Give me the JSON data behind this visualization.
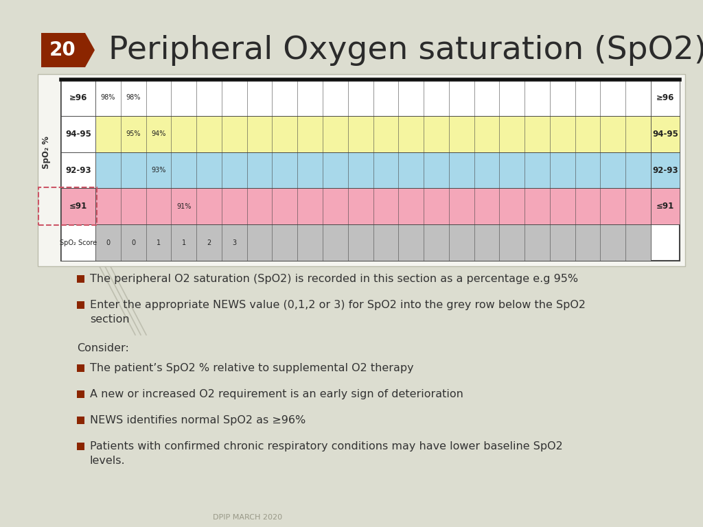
{
  "title": "Peripheral Oxygen saturation (SpO2)",
  "slide_number": "20",
  "bg_color": "#dcddd0",
  "title_color": "#2b2b2b",
  "badge_color": "#8b2500",
  "badge_text_color": "#ffffff",
  "table": {
    "rows": [
      {
        "label": "≥96",
        "color": "#ffffff",
        "values": [
          "98%",
          "98%",
          "",
          "",
          "",
          "",
          "",
          "",
          "",
          "",
          "",
          "",
          "",
          "",
          "",
          "",
          "",
          "",
          "",
          "",
          "",
          ""
        ],
        "right_label": "≥96"
      },
      {
        "label": "94-95",
        "color": "#f5f5a0",
        "values": [
          "",
          "95%",
          "94%",
          "",
          "",
          "",
          "",
          "",
          "",
          "",
          "",
          "",
          "",
          "",
          "",
          "",
          "",
          "",
          "",
          "",
          "",
          ""
        ],
        "right_label": "94-95"
      },
      {
        "label": "92-93",
        "color": "#a8d8ea",
        "values": [
          "",
          "",
          "93%",
          "",
          "",
          "",
          "",
          "",
          "",
          "",
          "",
          "",
          "",
          "",
          "",
          "",
          "",
          "",
          "",
          "",
          "",
          ""
        ],
        "right_label": "92-93"
      },
      {
        "label": "≤91",
        "color": "#f4a7b9",
        "values": [
          "",
          "",
          "",
          "91%",
          "",
          "",
          "",
          "",
          "",
          "",
          "",
          "",
          "",
          "",
          "",
          "",
          "",
          "",
          "",
          "",
          "",
          ""
        ],
        "right_label": "≤91"
      },
      {
        "label": "SpO₂ Score",
        "color": "#c0c0c0",
        "values": [
          "0",
          "0",
          "1",
          "1",
          "2",
          "3",
          "",
          "",
          "",
          "",
          "",
          "",
          "",
          "",
          "",
          "",
          "",
          "",
          "",
          "",
          "",
          ""
        ],
        "right_label": ""
      }
    ],
    "n_cols": 22,
    "ylabel": "SpO₂ %"
  },
  "bullet_color": "#8b2500",
  "bullet_points": [
    "The peripheral O2 saturation (SpO2) is recorded in this section as a percentage e.g 95%",
    "Enter the appropriate NEWS value (0,1,2 or 3) for SpO2 into the grey row below the SpO2\nsection"
  ],
  "consider_text": "Consider:",
  "sub_bullet_points": [
    "The patient’s SpO2 % relative to supplemental O2 therapy",
    "A new or increased O2 requirement is an early sign of deterioration",
    "NEWS identifies normal SpO2 as ≥96%",
    "Patients with confirmed chronic respiratory conditions may have lower baseline SpO2\nlevels."
  ],
  "footer_text": "DPIP MARCH 2020",
  "table_border_color": "#444444",
  "table_bg": "#ffffff",
  "card_bg": "#f5f5f0",
  "card_border": "#bbbbaa"
}
